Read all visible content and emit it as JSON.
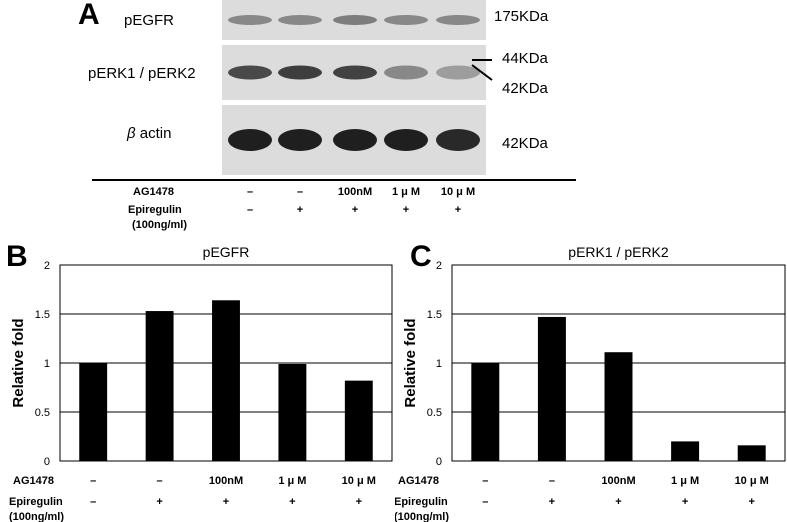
{
  "panelA": {
    "letter": "A",
    "labels": {
      "pegfr": "pEGFR",
      "perk": "pERK1 / pERK2",
      "actin_symbol": "β",
      "actin": "actin"
    },
    "kda": {
      "k175": "175KDa",
      "k44": "44KDa",
      "k42a": "42KDa",
      "k42b": "42KDa"
    },
    "conditions": {
      "ag_label": "AG1478",
      "ag_values": [
        "–",
        "–",
        "100nM",
        "1 μ M",
        "10 μ M"
      ],
      "epi_label": "Epiregulin",
      "epi_unit": "(100ng/ml)",
      "epi_values": [
        "–",
        "+",
        "+",
        "+",
        "+"
      ]
    },
    "band_intensity": {
      "pegfr": [
        0.45,
        0.45,
        0.5,
        0.45,
        0.45
      ],
      "perk": [
        0.75,
        0.8,
        0.78,
        0.45,
        0.35
      ],
      "actin": [
        0.95,
        0.95,
        0.95,
        0.95,
        0.9
      ]
    }
  },
  "panelB": {
    "letter": "B"
  },
  "panelC": {
    "letter": "C"
  },
  "chart_data": [
    {
      "type": "bar",
      "title": "pEGFR",
      "ylabel": "Relative fold",
      "ylim": [
        0,
        2
      ],
      "yticks": [
        "0",
        "0.5",
        "1",
        "1.5",
        "2"
      ],
      "grid": true,
      "values": [
        1.0,
        1.53,
        1.64,
        0.99,
        0.82
      ],
      "conditions": {
        "ag_label": "AG1478",
        "ag_values": [
          "–",
          "–",
          "100nM",
          "1 μ M",
          "10 μ M"
        ],
        "epi_label": "Epiregulin",
        "epi_unit": "(100ng/ml)",
        "epi_values": [
          "–",
          "+",
          "+",
          "+",
          "+"
        ]
      }
    },
    {
      "type": "bar",
      "title": "pERK1 / pERK2",
      "ylabel": "Relative fold",
      "ylim": [
        0,
        2
      ],
      "yticks": [
        "0",
        "0.5",
        "1",
        "1.5",
        "2"
      ],
      "grid": true,
      "values": [
        1.0,
        1.47,
        1.11,
        0.2,
        0.16
      ],
      "conditions": {
        "ag_label": "AG1478",
        "ag_values": [
          "–",
          "–",
          "100nM",
          "1 μ M",
          "10 μ M"
        ],
        "epi_label": "Epiregulin",
        "epi_unit": "(100ng/ml)",
        "epi_values": [
          "–",
          "+",
          "+",
          "+",
          "+"
        ]
      }
    }
  ]
}
